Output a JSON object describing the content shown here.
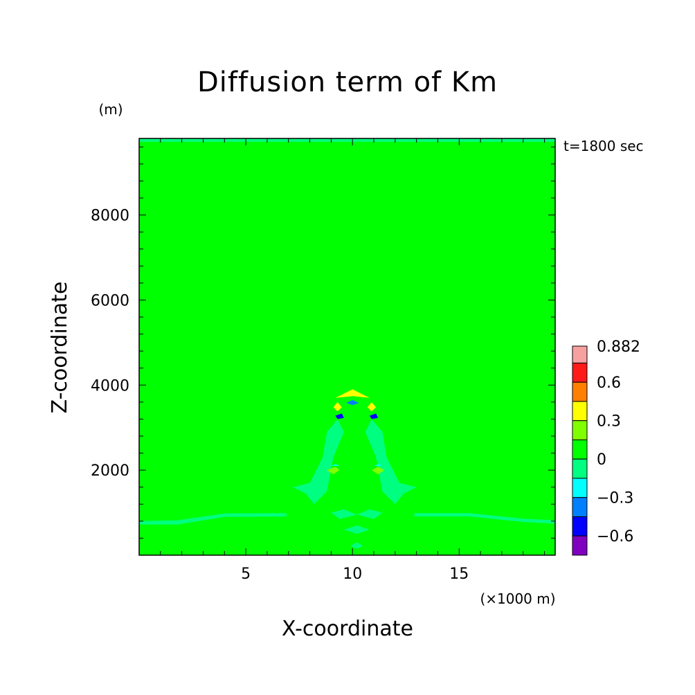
{
  "chart_data": {
    "type": "contour",
    "title": "Diffusion term of Km",
    "xlabel": "X-coordinate",
    "ylabel": "Z-coordinate",
    "x_unit": "(×1000 m)",
    "y_unit": "(m)",
    "time_label": "t=1800 sec",
    "xlim": [
      0,
      19.5
    ],
    "ylim": [
      0,
      9800
    ],
    "x_ticks": [
      5,
      10,
      15
    ],
    "y_ticks": [
      2000,
      4000,
      6000,
      8000
    ],
    "background_value_range": [
      0,
      0.15
    ],
    "background_color": "#00ff00",
    "colorbar": {
      "levels": [
        {
          "min": 0.75,
          "max": 0.882,
          "color": "#f7a0a0"
        },
        {
          "min": 0.6,
          "max": 0.75,
          "color": "#ff1a1a"
        },
        {
          "min": 0.45,
          "max": 0.6,
          "color": "#ff7f00"
        },
        {
          "min": 0.3,
          "max": 0.45,
          "color": "#ffff00"
        },
        {
          "min": 0.15,
          "max": 0.3,
          "color": "#80ff00"
        },
        {
          "min": 0,
          "max": 0.15,
          "color": "#00ff00"
        },
        {
          "min": -0.15,
          "max": 0,
          "color": "#00ff80"
        },
        {
          "min": -0.3,
          "max": -0.15,
          "color": "#00ffff"
        },
        {
          "min": -0.45,
          "max": -0.3,
          "color": "#007fff"
        },
        {
          "min": -0.6,
          "max": -0.45,
          "color": "#0000ff"
        },
        {
          "min": -0.75,
          "max": -0.6,
          "color": "#7f00bf"
        }
      ],
      "labels": [
        "0.882",
        "0.6",
        "0.3",
        "0",
        "−0.3",
        "−0.6"
      ],
      "label_values": [
        0.882,
        0.6,
        0.3,
        0,
        -0.3,
        -0.6
      ]
    },
    "features": [
      {
        "name": "top-boundary-strip",
        "value": -0.05,
        "points": [
          [
            0,
            9720
          ],
          [
            19.5,
            9720
          ],
          [
            19.5,
            9800
          ],
          [
            0,
            9800
          ]
        ]
      },
      {
        "name": "low-level-band-left",
        "value": -0.05,
        "points": [
          [
            0,
            800
          ],
          [
            1.8,
            820
          ],
          [
            4,
            980
          ],
          [
            6.9,
            990
          ],
          [
            6.9,
            910
          ],
          [
            4,
            900
          ],
          [
            1.8,
            720
          ],
          [
            0,
            720
          ]
        ]
      },
      {
        "name": "low-level-band-right",
        "value": -0.05,
        "points": [
          [
            12.9,
            990
          ],
          [
            15.5,
            990
          ],
          [
            18,
            860
          ],
          [
            19.5,
            820
          ],
          [
            19.5,
            740
          ],
          [
            18,
            780
          ],
          [
            15.5,
            910
          ],
          [
            12.9,
            910
          ]
        ]
      },
      {
        "name": "plume-left-flank",
        "value": -0.05,
        "points": [
          [
            7.2,
            1600
          ],
          [
            8,
            1700
          ],
          [
            8.6,
            2300
          ],
          [
            8.8,
            2900
          ],
          [
            9.3,
            3200
          ],
          [
            9.6,
            2900
          ],
          [
            9.1,
            2300
          ],
          [
            8.8,
            1500
          ],
          [
            8.2,
            1200
          ],
          [
            7.8,
            1450
          ]
        ]
      },
      {
        "name": "plume-right-flank",
        "value": -0.05,
        "points": [
          [
            13,
            1600
          ],
          [
            12.2,
            1700
          ],
          [
            11.6,
            2300
          ],
          [
            11.4,
            2900
          ],
          [
            10.9,
            3200
          ],
          [
            10.6,
            2900
          ],
          [
            11.1,
            2300
          ],
          [
            11.4,
            1500
          ],
          [
            12,
            1200
          ],
          [
            12.4,
            1450
          ]
        ]
      },
      {
        "name": "plume-lower-lobes",
        "value": -0.05,
        "points": [
          [
            9,
            1000
          ],
          [
            9.6,
            1080
          ],
          [
            10.2,
            950
          ],
          [
            10.8,
            1080
          ],
          [
            11.4,
            1000
          ],
          [
            11.0,
            850
          ],
          [
            10.2,
            950
          ],
          [
            9.4,
            850
          ]
        ]
      },
      {
        "name": "plume-base-cells",
        "value": -0.05,
        "points": [
          [
            9.6,
            600
          ],
          [
            10.2,
            700
          ],
          [
            10.8,
            600
          ],
          [
            10.2,
            500
          ]
        ]
      },
      {
        "name": "plume-bottom-cell",
        "value": -0.05,
        "points": [
          [
            9.9,
            220
          ],
          [
            10.2,
            300
          ],
          [
            10.5,
            220
          ],
          [
            10.2,
            150
          ]
        ]
      },
      {
        "name": "cap-positive",
        "value": 0.7,
        "points": [
          [
            9.4,
            3720
          ],
          [
            10,
            3850
          ],
          [
            10.6,
            3720
          ],
          [
            10,
            3760
          ]
        ]
      },
      {
        "name": "cap-ring",
        "value": 0.4,
        "points": [
          [
            9.2,
            3700
          ],
          [
            10,
            3900
          ],
          [
            10.8,
            3700
          ],
          [
            10,
            3740
          ]
        ]
      },
      {
        "name": "cap-left-lobe",
        "value": 0.35,
        "points": [
          [
            9.1,
            3480
          ],
          [
            9.3,
            3600
          ],
          [
            9.5,
            3480
          ],
          [
            9.3,
            3380
          ]
        ]
      },
      {
        "name": "cap-right-lobe",
        "value": 0.35,
        "points": [
          [
            10.7,
            3480
          ],
          [
            10.9,
            3600
          ],
          [
            11.1,
            3480
          ],
          [
            10.9,
            3380
          ]
        ]
      },
      {
        "name": "neg-core-left",
        "value": -0.55,
        "points": [
          [
            9.2,
            3280
          ],
          [
            9.5,
            3330
          ],
          [
            9.6,
            3230
          ],
          [
            9.3,
            3200
          ]
        ]
      },
      {
        "name": "neg-core-right",
        "value": -0.55,
        "points": [
          [
            10.8,
            3280
          ],
          [
            11.1,
            3330
          ],
          [
            11.2,
            3230
          ],
          [
            10.9,
            3200
          ]
        ]
      },
      {
        "name": "neg-core-top",
        "value": -0.4,
        "points": [
          [
            9.7,
            3580
          ],
          [
            10,
            3650
          ],
          [
            10.3,
            3580
          ],
          [
            10,
            3530
          ]
        ]
      },
      {
        "name": "pos-mid-left",
        "value": 0.2,
        "points": [
          [
            8.8,
            2000
          ],
          [
            9.2,
            2080
          ],
          [
            9.4,
            2000
          ],
          [
            9.1,
            1900
          ]
        ]
      },
      {
        "name": "pos-mid-right",
        "value": 0.2,
        "points": [
          [
            10.9,
            2000
          ],
          [
            11.2,
            2080
          ],
          [
            11.5,
            2000
          ],
          [
            11.2,
            1900
          ]
        ]
      },
      {
        "name": "neg-mid-left",
        "value": -0.2,
        "points": [
          [
            9.0,
            2100
          ],
          [
            9.2,
            2140
          ],
          [
            9.4,
            2100
          ]
        ]
      },
      {
        "name": "neg-mid-right",
        "value": -0.2,
        "points": [
          [
            11.0,
            2100
          ],
          [
            11.2,
            2140
          ],
          [
            11.4,
            2100
          ]
        ]
      }
    ]
  }
}
